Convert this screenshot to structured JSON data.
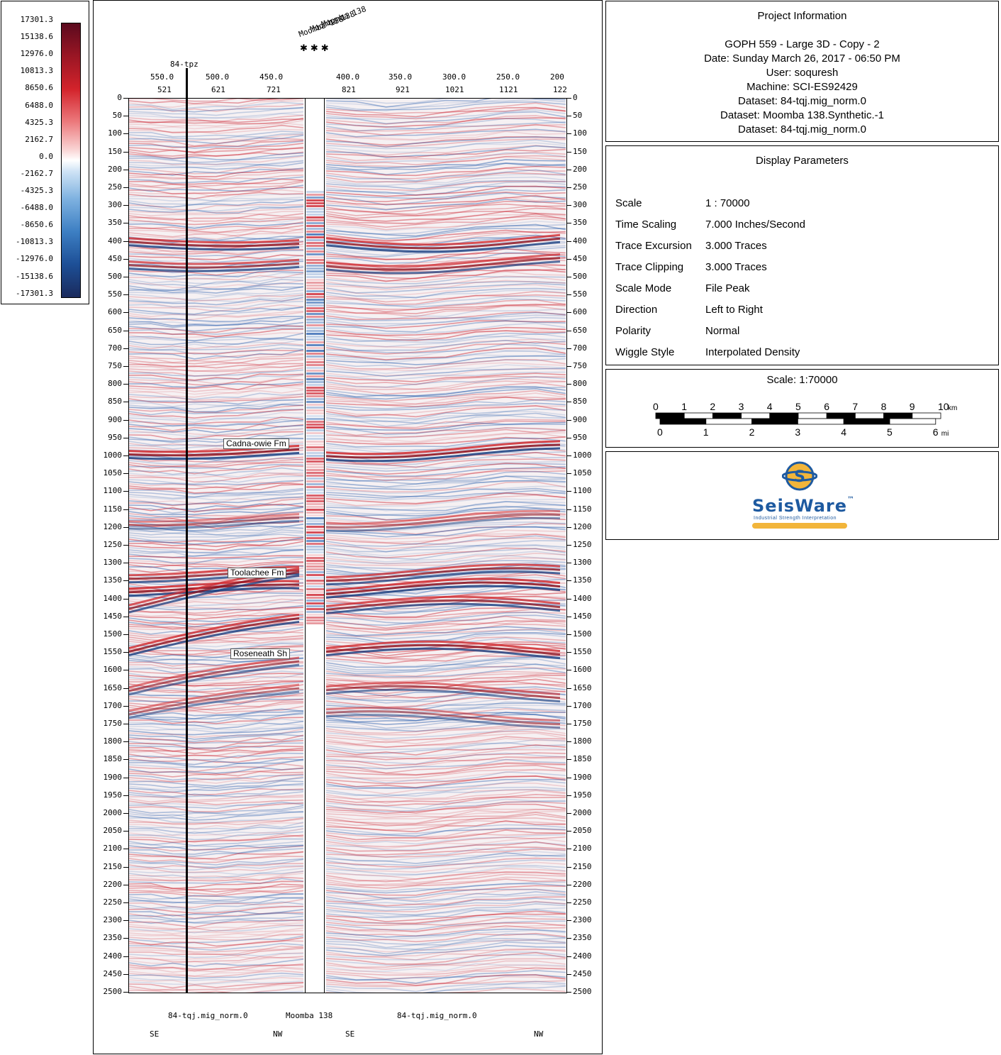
{
  "legend": {
    "labels": [
      "17301.3",
      "15138.6",
      "12976.0",
      "10813.3",
      "8650.6",
      "6488.0",
      "4325.3",
      "2162.7",
      "0.0",
      "-2162.7",
      "-4325.3",
      "-6488.0",
      "-8650.6",
      "-10813.3",
      "-12976.0",
      "-15138.6",
      "-17301.3"
    ]
  },
  "section": {
    "well_labels": [
      "Moomba 138",
      "Moomba 138",
      "Moomba 138"
    ],
    "left_well": "84-tpz",
    "header_cdp_values": [
      "550.0",
      "500.0",
      "450.0",
      "400.0",
      "350.0",
      "300.0",
      "250.0",
      "200"
    ],
    "header_trace_values": [
      "521",
      "621",
      "721",
      "821",
      "921",
      "1021",
      "1121",
      "122"
    ],
    "time_labels": [
      "0",
      "50",
      "100",
      "150",
      "200",
      "250",
      "300",
      "350",
      "400",
      "450",
      "500",
      "550",
      "600",
      "650",
      "700",
      "750",
      "800",
      "850",
      "900",
      "950",
      "1000",
      "1050",
      "1100",
      "1150",
      "1200",
      "1250",
      "1300",
      "1350",
      "1400",
      "1450",
      "1500",
      "1550",
      "1600",
      "1650",
      "1700",
      "1750",
      "1800",
      "1850",
      "1900",
      "1950",
      "2000",
      "2050",
      "2100",
      "2150",
      "2200",
      "2250",
      "2300",
      "2350",
      "2400",
      "2450",
      "2500"
    ],
    "horizons": [
      {
        "name": "Cadna-owie Fm",
        "time": 970
      },
      {
        "name": "Toolachee Fm",
        "time": 1330
      },
      {
        "name": "Roseneath Sh",
        "time": 1557
      }
    ],
    "footer": {
      "left_dataset": "84-tqj.mig_norm.0",
      "well": "Moomba 138",
      "right_dataset": "84-tqj.mig_norm.0",
      "dir_se_1": "SE",
      "dir_nw_1": "NW",
      "dir_se_2": "SE",
      "dir_nw_2": "NW"
    },
    "colors": {
      "positive": "#c8101e",
      "negative": "#1c55a8"
    }
  },
  "project": {
    "title": "Project Information",
    "lines": [
      "GOPH 559 - Large 3D - Copy - 2",
      "Date: Sunday March 26, 2017 - 06:50 PM",
      "User: soquresh",
      "Machine: SCI-ES92429",
      "Dataset: 84-tqj.mig_norm.0",
      "Dataset: Moomba 138.Synthetic.-1",
      "Dataset: 84-tqj.mig_norm.0"
    ]
  },
  "display": {
    "title": "Display Parameters",
    "params": [
      {
        "key": "Scale",
        "value": "1 : 70000"
      },
      {
        "key": "Time Scaling",
        "value": "7.000 Inches/Second"
      },
      {
        "key": "Trace Excursion",
        "value": "3.000 Traces"
      },
      {
        "key": "Trace Clipping",
        "value": "3.000 Traces"
      },
      {
        "key": "Scale Mode",
        "value": "File Peak"
      },
      {
        "key": "Direction",
        "value": "Left to Right"
      },
      {
        "key": "Polarity",
        "value": "Normal"
      },
      {
        "key": "Wiggle Style",
        "value": "Interpolated Density"
      }
    ]
  },
  "scale_bar": {
    "title": "Scale: 1:70000",
    "km_labels": [
      "0",
      "1",
      "2",
      "3",
      "4",
      "5",
      "6",
      "7",
      "8",
      "9",
      "10"
    ],
    "km_unit": "km",
    "mi_labels": [
      "0",
      "1",
      "2",
      "3",
      "4",
      "5",
      "6"
    ],
    "mi_unit": "mi"
  },
  "logo": {
    "text": "SeisWare",
    "trademark": "™",
    "tagline": "Industrial Strength Interpretation",
    "blue": "#1e5aa0",
    "gold": "#f2b53a"
  }
}
